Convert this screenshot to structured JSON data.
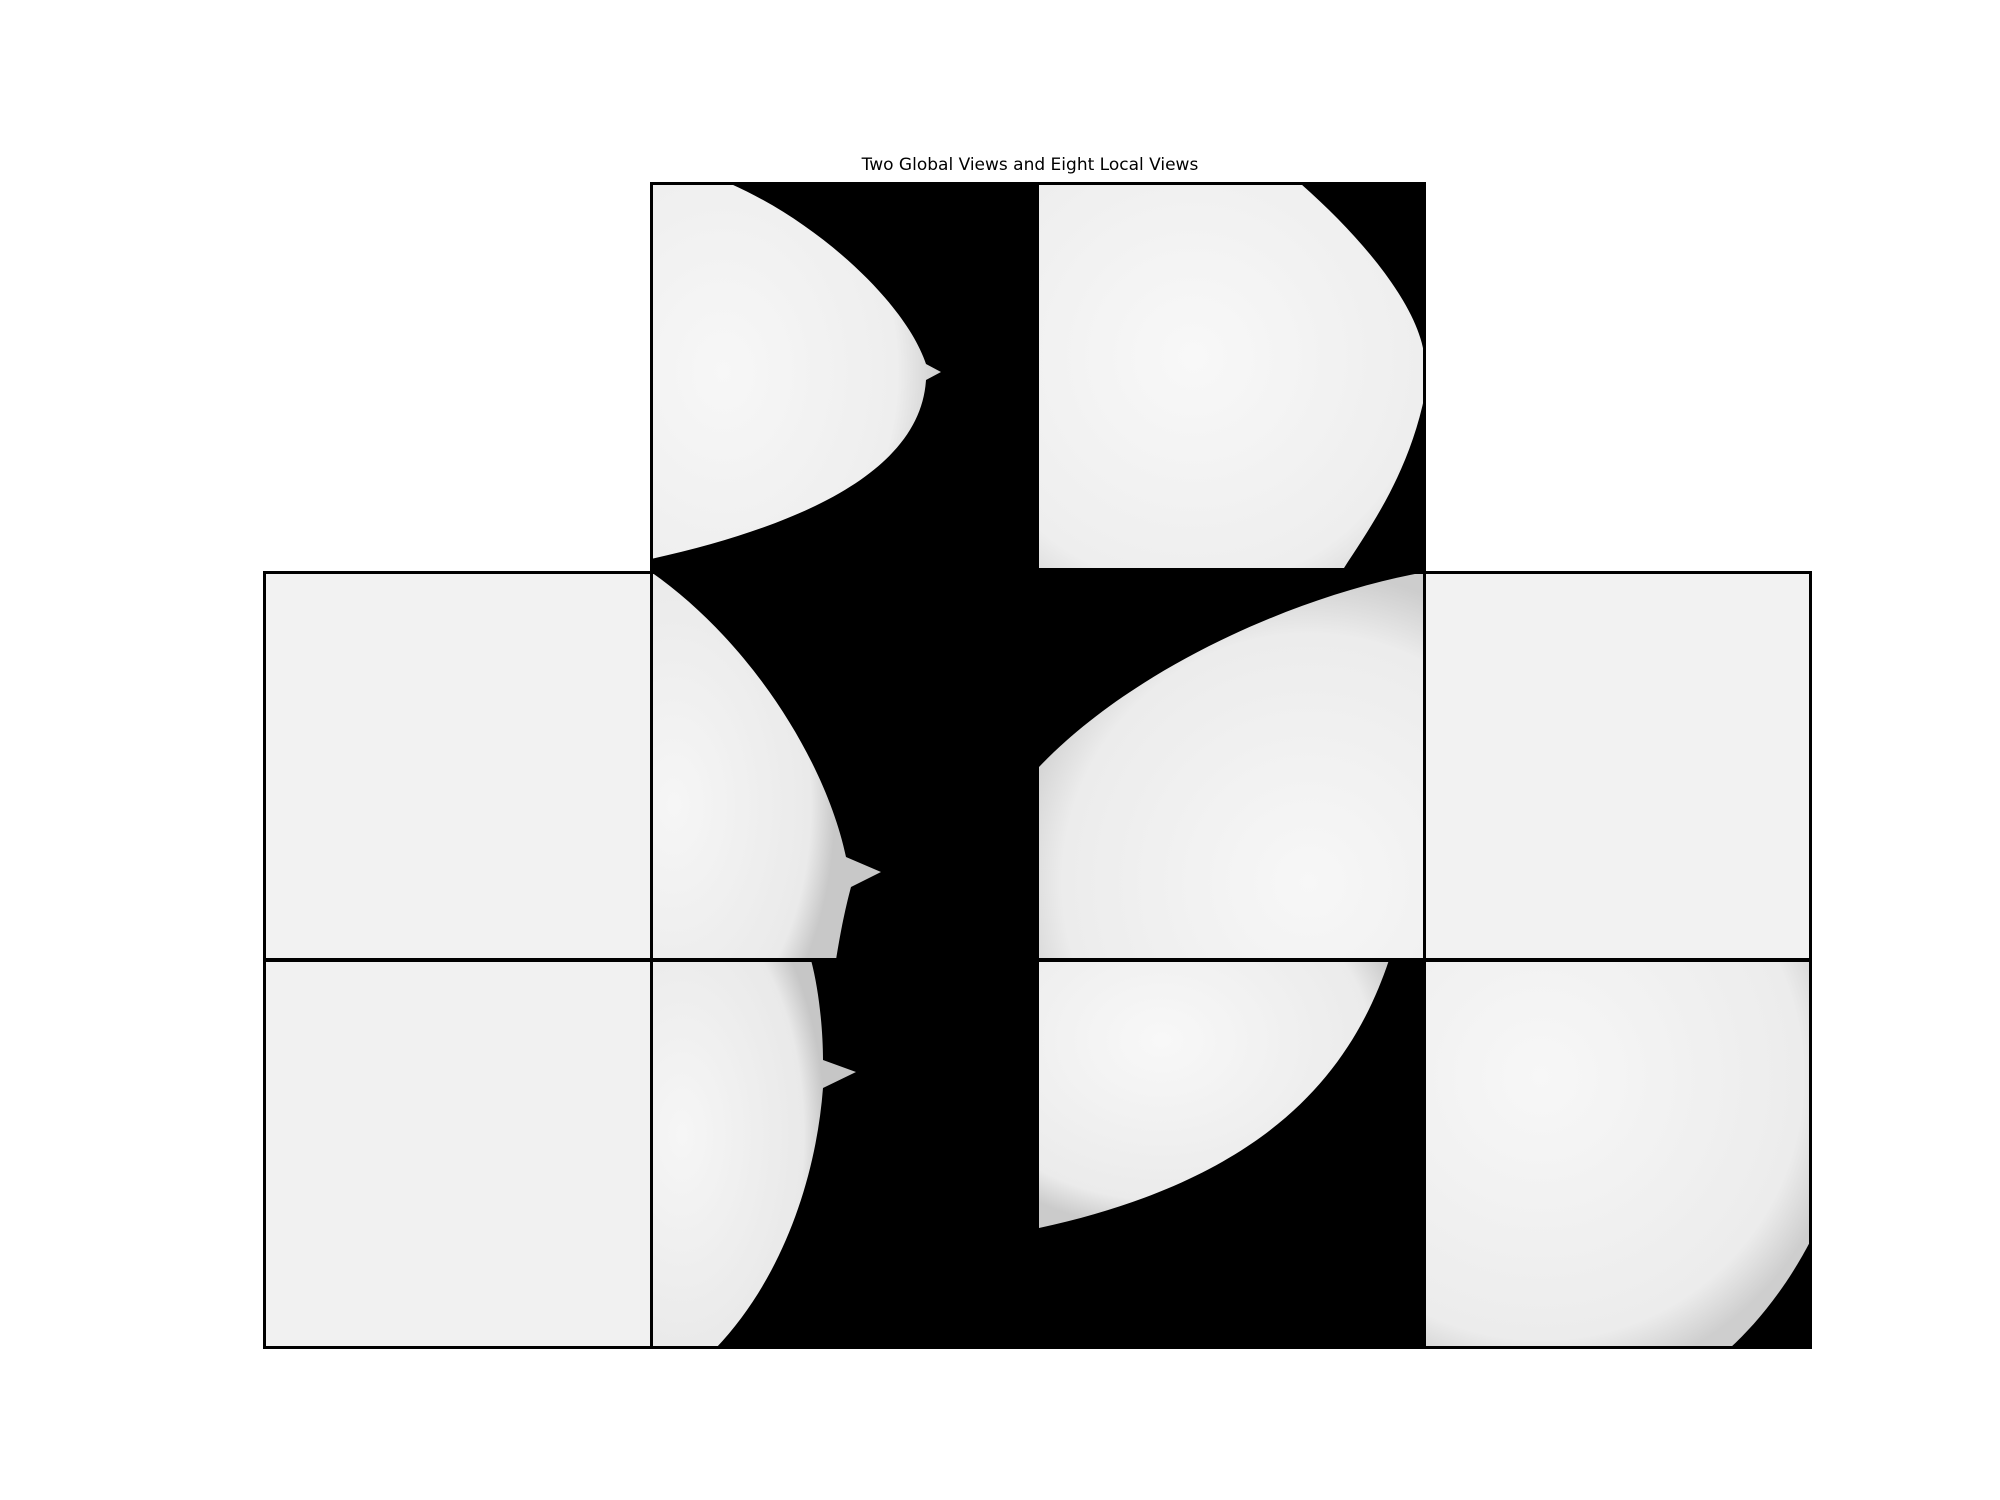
{
  "figure": {
    "title": "Two Global Views and Eight Local Views",
    "colors": {
      "background": "#ffffff",
      "tissue": "#efefef",
      "air": "#000000",
      "border": "#000000"
    }
  },
  "views": {
    "global": [
      {
        "label": "",
        "content": "breast-tip-left"
      },
      {
        "label": "",
        "content": "breast-upper-right"
      }
    ],
    "local": [
      {
        "label": "",
        "content": "tissue"
      },
      {
        "label": "",
        "content": "breast-edge-nipple"
      },
      {
        "label": "",
        "content": "breast-lower-curve"
      },
      {
        "label": "",
        "content": "tissue"
      },
      {
        "label": "",
        "content": "tissue"
      },
      {
        "label": "",
        "content": "breast-edge-nipple-2"
      },
      {
        "label": "",
        "content": "breast-lower-lobe"
      },
      {
        "label": "",
        "content": "tissue-corner"
      }
    ]
  }
}
